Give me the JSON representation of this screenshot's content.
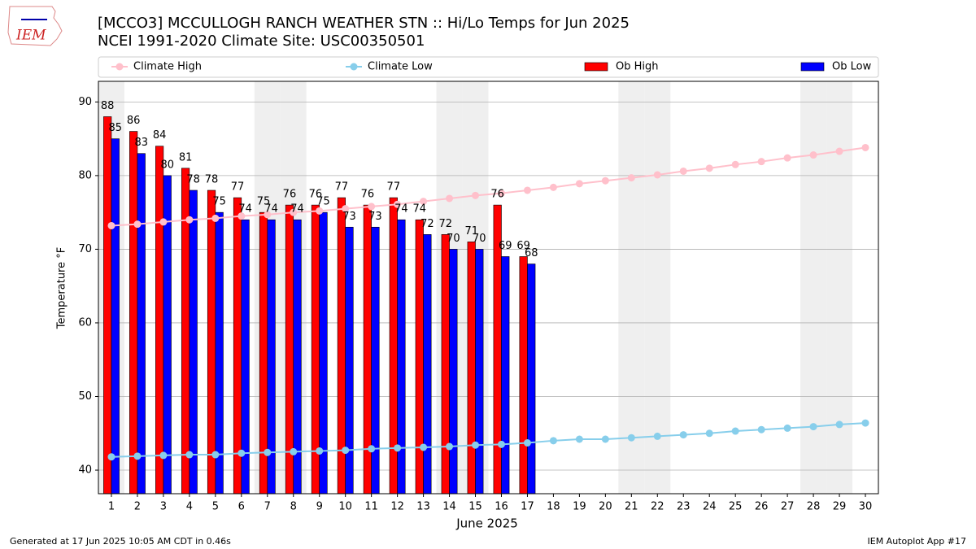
{
  "logo_text": "IEM",
  "footer": {
    "left": "Generated at 17 Jun 2025 10:05 AM CDT in 0.46s",
    "right": "IEM Autoplot App #17"
  },
  "chart_data": {
    "type": "bar_line",
    "title": "[MCCO3] MCCULLOGH RANCH WEATHER STN :: Hi/Lo Temps for Jun 2025",
    "subtitle": "NCEI 1991-2020 Climate Site: USC00350501",
    "xlabel": "June 2025",
    "ylabel": "Temperature $^\\circ$F",
    "ylabel_text": "Temperature °F",
    "x": [
      1,
      2,
      3,
      4,
      5,
      6,
      7,
      8,
      9,
      10,
      11,
      12,
      13,
      14,
      15,
      16,
      17,
      18,
      19,
      20,
      21,
      22,
      23,
      24,
      25,
      26,
      27,
      28,
      29,
      30
    ],
    "xlim": [
      0.5,
      30.5
    ],
    "xticks": [
      1,
      2,
      3,
      4,
      5,
      6,
      7,
      8,
      9,
      10,
      11,
      12,
      13,
      14,
      15,
      16,
      17,
      18,
      19,
      20,
      21,
      22,
      23,
      24,
      25,
      26,
      27,
      28,
      29,
      30
    ],
    "ylim": [
      36.8,
      92.8
    ],
    "yticks": [
      40,
      50,
      60,
      70,
      80,
      90
    ],
    "grid": true,
    "shaded_days": [
      1,
      7,
      8,
      14,
      15,
      21,
      22,
      28,
      29
    ],
    "series": [
      {
        "name": "Climate High",
        "kind": "line",
        "color": "#ffc0cb",
        "values": [
          73.2,
          73.4,
          73.7,
          74.0,
          74.2,
          74.5,
          74.7,
          75.0,
          75.2,
          75.5,
          75.8,
          76.1,
          76.5,
          76.9,
          77.3,
          77.6,
          78.0,
          78.4,
          78.9,
          79.3,
          79.7,
          80.1,
          80.6,
          81.0,
          81.5,
          81.9,
          82.4,
          82.8,
          83.3,
          83.8
        ]
      },
      {
        "name": "Climate Low",
        "kind": "line",
        "color": "#87ceeb",
        "values": [
          41.8,
          41.9,
          42.0,
          42.1,
          42.1,
          42.3,
          42.4,
          42.5,
          42.6,
          42.7,
          42.9,
          43.0,
          43.1,
          43.2,
          43.4,
          43.5,
          43.7,
          44.0,
          44.2,
          44.2,
          44.4,
          44.6,
          44.8,
          45.0,
          45.3,
          45.5,
          45.7,
          45.9,
          46.2,
          46.4
        ]
      },
      {
        "name": "Ob High",
        "kind": "bar",
        "color": "#ff0000",
        "values": [
          88,
          86,
          84,
          81,
          78,
          77,
          75,
          76,
          76,
          77,
          76,
          77,
          74,
          72,
          71,
          76,
          69,
          null,
          null,
          null,
          null,
          null,
          null,
          null,
          null,
          null,
          null,
          null,
          null,
          null
        ]
      },
      {
        "name": "Ob Low",
        "kind": "bar",
        "color": "#0000ff",
        "values": [
          85,
          83,
          80,
          78,
          75,
          74,
          74,
          74,
          75,
          73,
          73,
          74,
          72,
          70,
          70,
          69,
          68,
          null,
          null,
          null,
          null,
          null,
          null,
          null,
          null,
          null,
          null,
          null,
          null,
          null
        ]
      }
    ]
  }
}
